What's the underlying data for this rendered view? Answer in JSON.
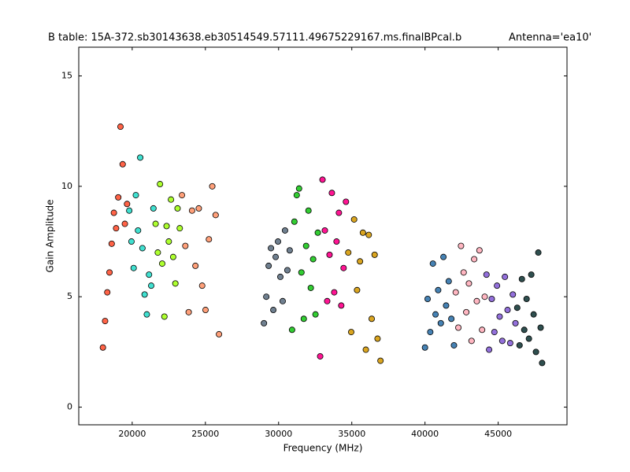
{
  "chart_data": {
    "type": "scatter",
    "title": "B table: 15A-372.sb30143638.eb30514549.57111.49675229167.ms.finalBPcal.b",
    "annotation": "Antenna='ea10'",
    "x_label": "Frequency (MHz)",
    "y_label": "Gain Amplitude",
    "xlim": [
      16350,
      49700
    ],
    "ylim": [
      -0.8,
      16.3
    ],
    "xticks": [
      20000,
      25000,
      30000,
      35000,
      40000,
      45000
    ],
    "yticks": [
      0,
      5,
      10,
      15
    ],
    "marker_edge_color": "#000000",
    "series": [
      {
        "color": "#ff6347",
        "x": [
          18000,
          18150,
          18300,
          18450,
          18600,
          18750,
          18900,
          19050,
          19200,
          19350,
          19500,
          19650
        ],
        "values": [
          2.7,
          3.9,
          5.2,
          6.1,
          7.4,
          8.8,
          8.1,
          9.5,
          12.7,
          11.0,
          8.3,
          9.2
        ]
      },
      {
        "color": "#40e0d0",
        "x": [
          19800,
          19950,
          20100,
          20250,
          20400,
          20550,
          20700,
          20850,
          21000,
          21150,
          21300,
          21450
        ],
        "values": [
          8.9,
          7.5,
          6.3,
          9.6,
          8.0,
          11.3,
          7.2,
          5.1,
          4.2,
          6.0,
          5.5,
          9.0
        ]
      },
      {
        "color": "#adff2f",
        "x": [
          21600,
          21750,
          21900,
          22050,
          22200,
          22350,
          22500,
          22650,
          22800,
          22950,
          23100,
          23250
        ],
        "values": [
          8.3,
          7.0,
          10.1,
          6.5,
          4.1,
          8.2,
          7.5,
          9.4,
          6.8,
          5.6,
          9.0,
          8.1
        ]
      },
      {
        "color": "#ffa07a",
        "x": [
          23400,
          23630,
          23860,
          24090,
          24320,
          24550,
          24780,
          25010,
          25240,
          25470,
          25700,
          25930
        ],
        "values": [
          9.6,
          7.3,
          4.3,
          8.9,
          6.4,
          9.0,
          5.5,
          4.4,
          7.6,
          10.0,
          8.7,
          3.3
        ]
      },
      {
        "color": "#708090",
        "x": [
          29000,
          29160,
          29320,
          29480,
          29640,
          29800,
          29960,
          30120,
          30280,
          30440,
          30600,
          30760
        ],
        "values": [
          3.8,
          5.0,
          6.4,
          7.2,
          4.4,
          6.8,
          7.5,
          5.9,
          4.8,
          8.0,
          6.2,
          7.1
        ]
      },
      {
        "color": "#32cd32",
        "x": [
          30920,
          31080,
          31240,
          31400,
          31560,
          31720,
          31880,
          32040,
          32200,
          32360,
          32520,
          32680
        ],
        "values": [
          3.5,
          8.4,
          9.6,
          9.9,
          6.1,
          4.0,
          7.3,
          8.9,
          5.4,
          6.7,
          4.2,
          7.9
        ]
      },
      {
        "color": "#ff1493",
        "x": [
          32840,
          33000,
          33160,
          33320,
          33480,
          33640,
          33800,
          33960,
          34120,
          34280,
          34440,
          34600
        ],
        "values": [
          2.3,
          10.3,
          8.0,
          4.8,
          6.9,
          9.7,
          5.2,
          7.5,
          8.8,
          4.6,
          6.3,
          9.3
        ]
      },
      {
        "color": "#daa520",
        "x": [
          34760,
          34960,
          35160,
          35360,
          35560,
          35760,
          35960,
          36160,
          36360,
          36560,
          36760,
          36960
        ],
        "values": [
          7.0,
          3.4,
          8.5,
          5.3,
          6.6,
          7.9,
          2.6,
          7.8,
          4.0,
          6.9,
          3.1,
          2.1
        ]
      },
      {
        "color": "#4682b4",
        "x": [
          40000,
          40180,
          40360,
          40540,
          40720,
          40900,
          41080,
          41260,
          41440,
          41620,
          41800,
          41980
        ],
        "values": [
          2.7,
          4.9,
          3.4,
          6.5,
          4.2,
          5.3,
          3.8,
          6.8,
          4.6,
          5.7,
          4.0,
          2.8
        ]
      },
      {
        "color": "#ffb6c1",
        "x": [
          42100,
          42280,
          42460,
          42640,
          42820,
          43000,
          43180,
          43360,
          43540,
          43720,
          43900,
          44080
        ],
        "values": [
          5.2,
          3.6,
          7.3,
          6.1,
          4.3,
          5.6,
          3.0,
          6.7,
          4.8,
          7.1,
          3.5,
          5.0
        ]
      },
      {
        "color": "#9370db",
        "x": [
          44200,
          44380,
          44560,
          44740,
          44920,
          45100,
          45280,
          45460,
          45640,
          45820,
          46000,
          46180
        ],
        "values": [
          6.0,
          2.6,
          4.9,
          3.4,
          5.5,
          4.1,
          3.0,
          5.9,
          4.4,
          2.9,
          5.1,
          3.8
        ]
      },
      {
        "color": "#2f4f4f",
        "x": [
          46300,
          46460,
          46620,
          46780,
          46940,
          47100,
          47260,
          47420,
          47580,
          47740,
          47900,
          48000
        ],
        "values": [
          4.5,
          2.8,
          5.8,
          3.5,
          4.9,
          3.1,
          6.0,
          4.2,
          2.5,
          7.0,
          3.6,
          2.0
        ]
      }
    ]
  }
}
